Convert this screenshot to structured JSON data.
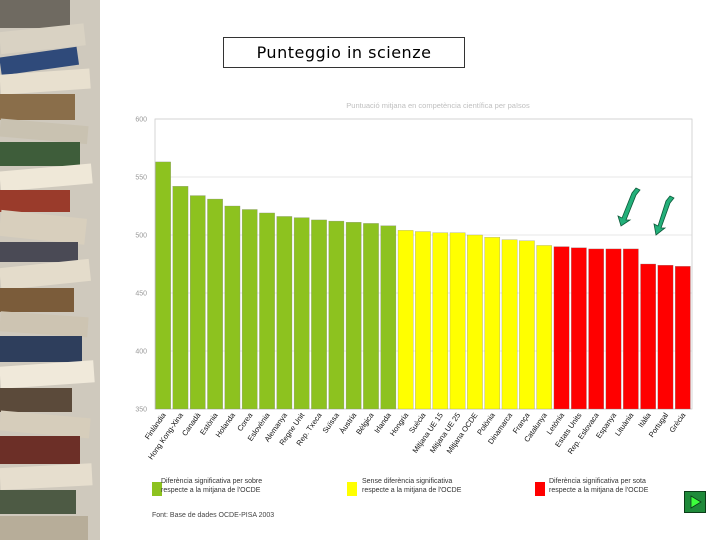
{
  "slide": {
    "title": "Punteggio in scienze",
    "source": "Font: Base de dades OCDE-PISA 2003"
  },
  "legend": [
    {
      "line1": "Diferència significativa per sobre",
      "line2": "respecte a la mitjana de l'OCDE",
      "color": "#8dc21f"
    },
    {
      "line1": "Sense diferència significativa",
      "line2": "respecte a la mitjana de l'OCDE",
      "color": "#ffff00"
    },
    {
      "line1": "Diferència significativa per sota",
      "line2": "respecte a la mitjana de l'OCDE",
      "color": "#ff0000"
    }
  ],
  "chart_data": {
    "type": "bar",
    "title": "Puntuació mitjana en competència científica per països",
    "ylim": [
      350,
      600
    ],
    "yticks": [
      "600",
      "550",
      "500",
      "450",
      "400",
      "350"
    ],
    "categories": [
      "Finlàndia",
      "Hong Kong-Xina",
      "Canadà",
      "Estònia",
      "Holanda",
      "Corea",
      "Eslovènia",
      "Alemanya",
      "Regne Unit",
      "Rep. Txeca",
      "Suïssa",
      "Àustria",
      "Bèlgica",
      "Irlanda",
      "Hongria",
      "Suècia",
      "Mitjana UE 15",
      "Mitjana UE 25",
      "Mitjana OCDE",
      "Polònia",
      "Dinamarca",
      "França",
      "Catalunya",
      "Letònia",
      "Estats Units",
      "Rep. Eslovaca",
      "Espanya",
      "Lituània",
      "Itàlia",
      "Portugal",
      "Grècia"
    ],
    "values": [
      563,
      542,
      534,
      531,
      525,
      522,
      519,
      516,
      515,
      513,
      512,
      511,
      510,
      508,
      504,
      503,
      502,
      502,
      500,
      498,
      496,
      495,
      491,
      490,
      489,
      488,
      488,
      488,
      475,
      474,
      473
    ],
    "groups": [
      "above",
      "above",
      "above",
      "above",
      "above",
      "above",
      "above",
      "above",
      "above",
      "above",
      "above",
      "above",
      "above",
      "above",
      "same",
      "same",
      "same",
      "same",
      "same",
      "same",
      "same",
      "same",
      "same",
      "below",
      "below",
      "below",
      "below",
      "below",
      "below",
      "below",
      "below"
    ],
    "colors": {
      "above": "#8dc21f",
      "same": "#ffff00",
      "below": "#ff0000"
    },
    "annotations": [
      "green arrow pointing at Espanya",
      "green arrow pointing at Portugal"
    ]
  }
}
